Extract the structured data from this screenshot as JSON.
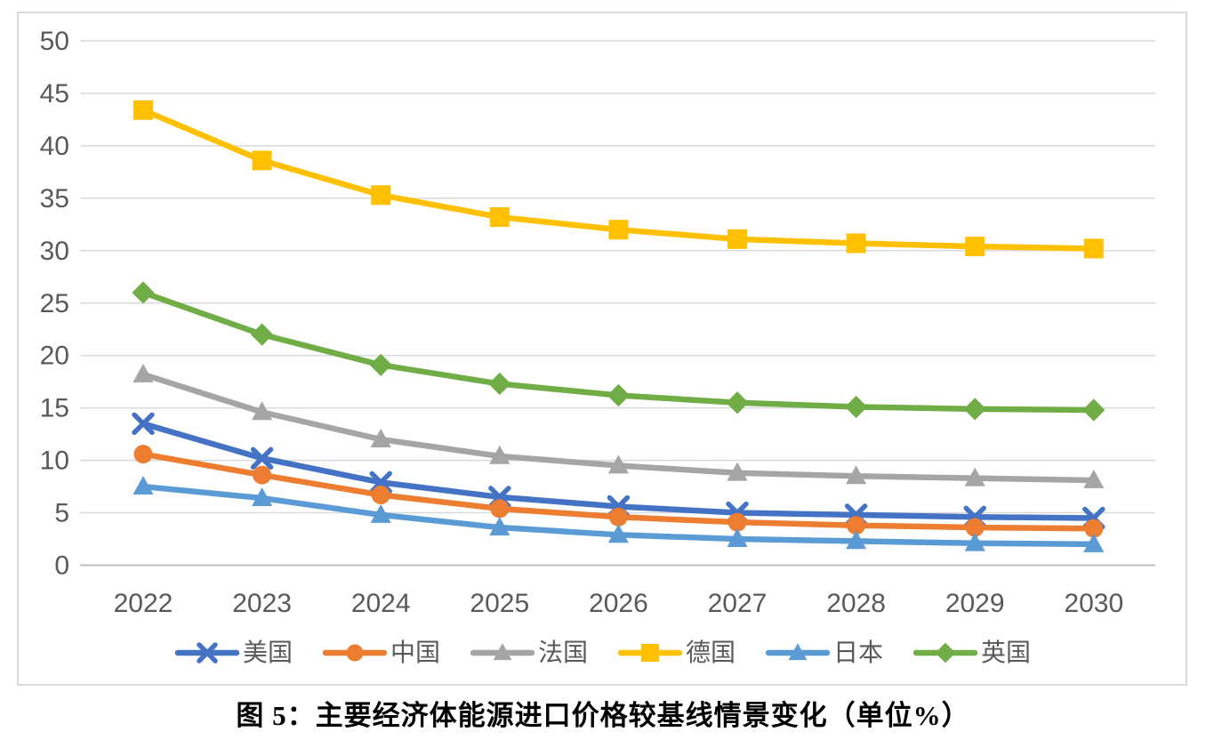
{
  "figure_title": "图 5：主要经济体能源进口价格较基线情景变化（单位%）",
  "chart_data": {
    "type": "line",
    "title": "图 5：主要经济体能源进口价格较基线情景变化（单位%）",
    "unit": "%",
    "categories": [
      "2022",
      "2023",
      "2024",
      "2025",
      "2026",
      "2027",
      "2028",
      "2029",
      "2030"
    ],
    "series": [
      {
        "id": "us",
        "name": "美国",
        "color": "#4472C4",
        "marker": "x",
        "values": [
          13.5,
          10.2,
          7.9,
          6.5,
          5.6,
          5.0,
          4.8,
          4.6,
          4.5
        ]
      },
      {
        "id": "cn",
        "name": "中国",
        "color": "#ED7D31",
        "marker": "circle",
        "values": [
          10.6,
          8.6,
          6.7,
          5.4,
          4.6,
          4.1,
          3.8,
          3.6,
          3.5
        ]
      },
      {
        "id": "fr",
        "name": "法国",
        "color": "#A5A5A5",
        "marker": "triangle",
        "values": [
          18.2,
          14.6,
          12.0,
          10.4,
          9.5,
          8.8,
          8.5,
          8.3,
          8.1
        ]
      },
      {
        "id": "de",
        "name": "德国",
        "color": "#FFC000",
        "marker": "square",
        "values": [
          43.4,
          38.6,
          35.3,
          33.2,
          32.0,
          31.1,
          30.7,
          30.4,
          30.2
        ]
      },
      {
        "id": "jp",
        "name": "日本",
        "color": "#5B9BD5",
        "marker": "triangle",
        "values": [
          7.5,
          6.4,
          4.8,
          3.6,
          2.9,
          2.5,
          2.3,
          2.1,
          2.0
        ]
      },
      {
        "id": "uk",
        "name": "英国",
        "color": "#70AD47",
        "marker": "diamond",
        "values": [
          26.0,
          22.0,
          19.1,
          17.3,
          16.2,
          15.5,
          15.1,
          14.9,
          14.8
        ]
      }
    ],
    "xlabel": "",
    "ylabel": "",
    "ylim": [
      0,
      50
    ],
    "yticks": [
      0,
      5,
      10,
      15,
      20,
      25,
      30,
      35,
      40,
      45,
      50
    ],
    "grid": "horizontal",
    "legend_position": "bottom",
    "colors": {
      "grid": "#D9D9D9",
      "zero_line": "#BFBFBF",
      "axis_text": "#595959",
      "frame_border": "#D9D9D9",
      "title_text": "#000000",
      "background": "#FFFFFF"
    }
  }
}
